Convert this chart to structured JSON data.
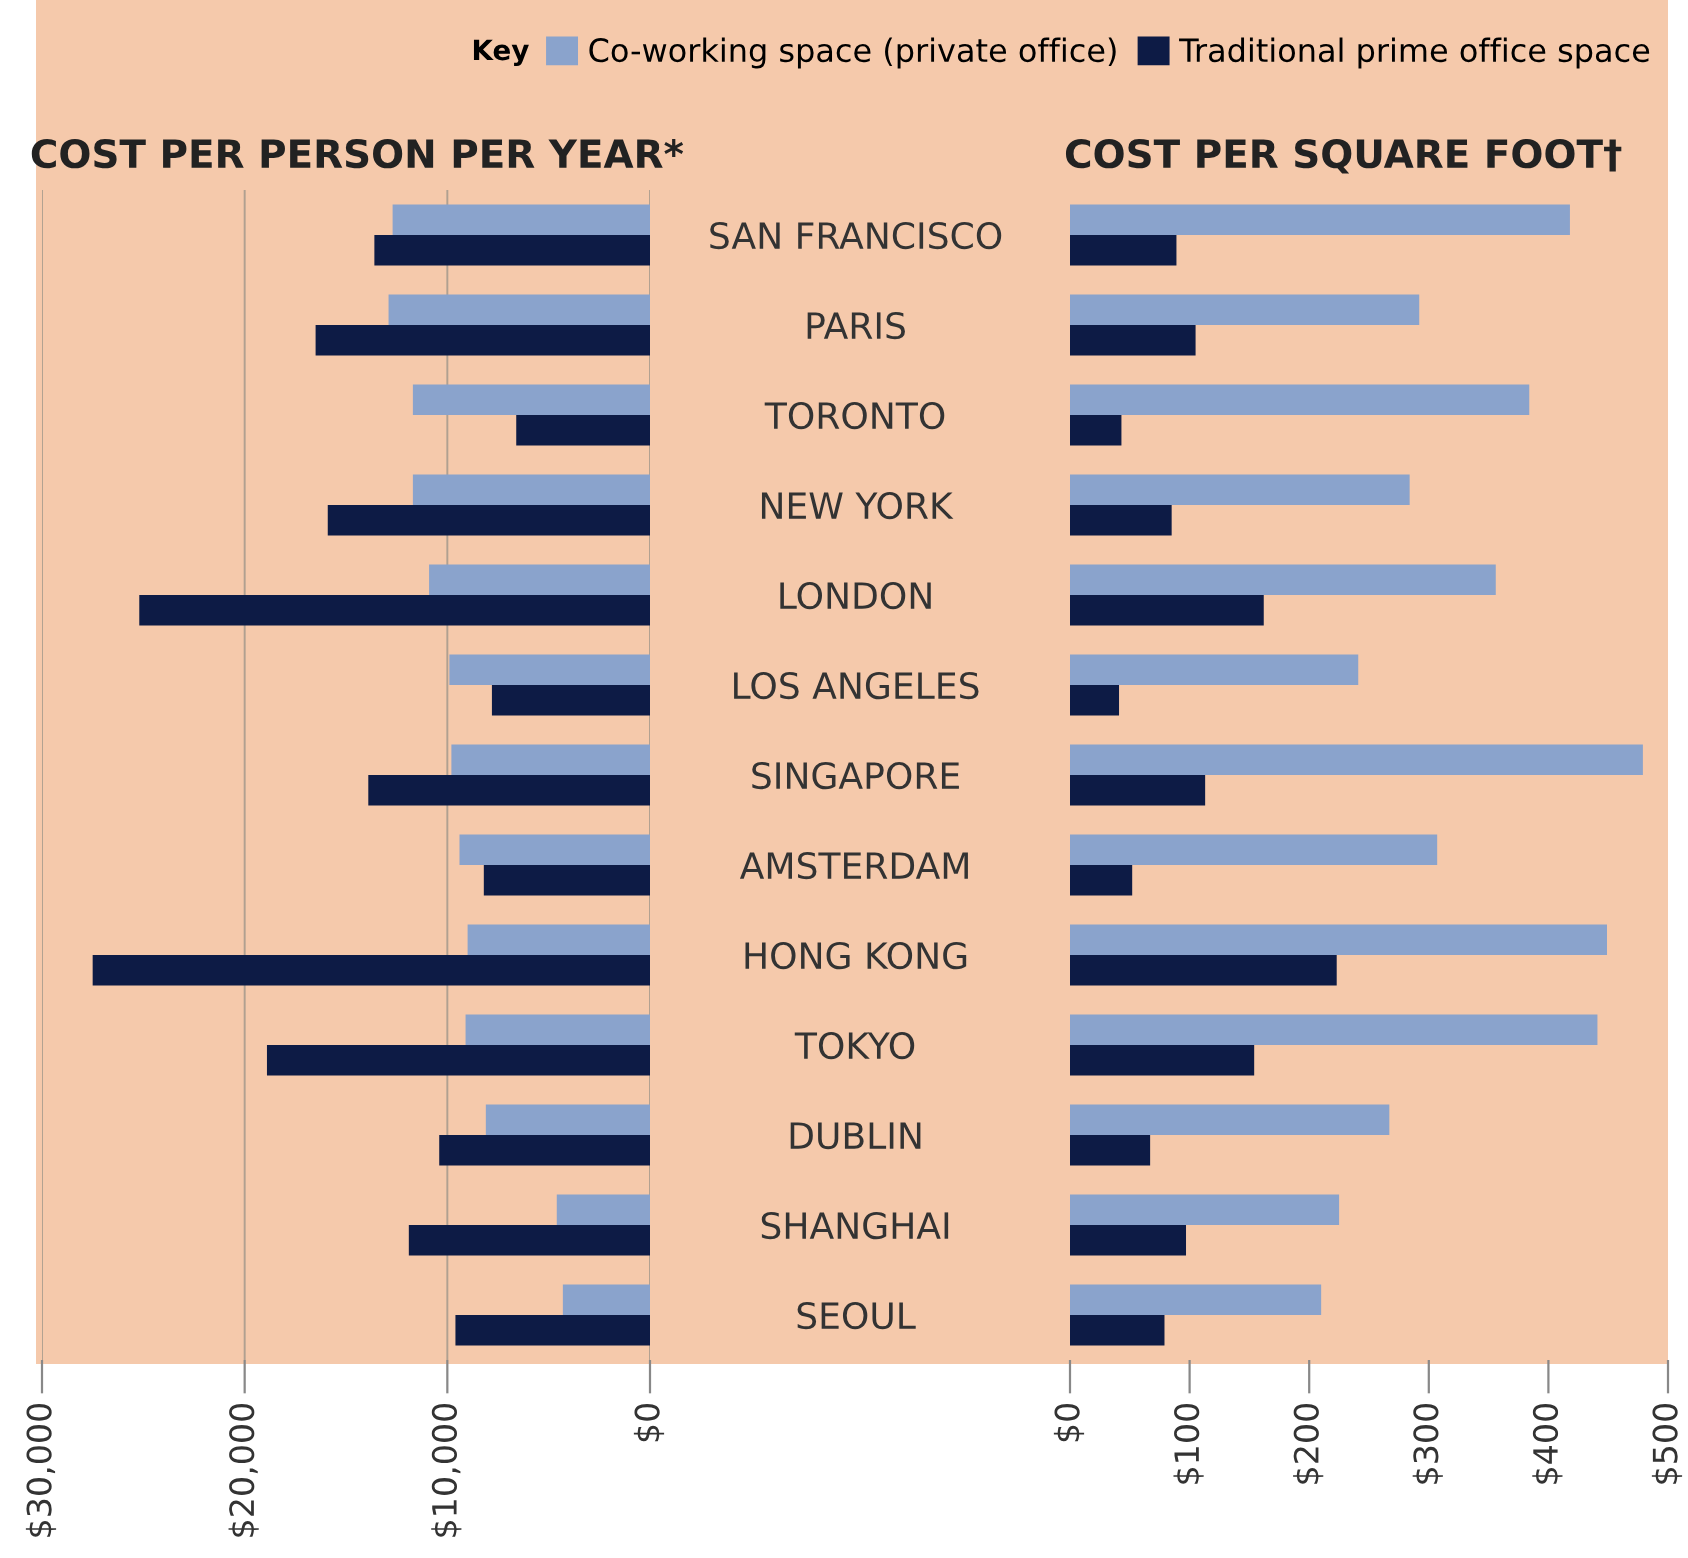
{
  "chart_data": [
    {
      "type": "bar",
      "orientation": "horizontal",
      "title": "COST PER PERSON PER YEAR*",
      "categories": [
        "SAN FRANCISCO",
        "PARIS",
        "TORONTO",
        "NEW YORK",
        "LONDON",
        "LOS ANGELES",
        "SINGAPORE",
        "AMSTERDAM",
        "HONG KONG",
        "TOKYO",
        "DUBLIN",
        "SHANGHAI",
        "SEOUL"
      ],
      "series": [
        {
          "name": "Co-working space (private office)",
          "color": "#8aa3cc",
          "values": [
            12700,
            12900,
            11700,
            11700,
            10900,
            9900,
            9800,
            9400,
            9000,
            9100,
            8100,
            4600,
            4300
          ]
        },
        {
          "name": "Traditional prime office space",
          "color": "#0d1b45",
          "values": [
            13600,
            16500,
            6600,
            15900,
            25200,
            7800,
            13900,
            8200,
            27500,
            18900,
            10400,
            11900,
            9600
          ]
        }
      ],
      "xlim": [
        30000,
        0
      ],
      "xticks": [
        {
          "value": 30000,
          "label": "$30,000"
        },
        {
          "value": 20000,
          "label": "$20,000"
        },
        {
          "value": 10000,
          "label": "$10,000"
        },
        {
          "value": 0,
          "label": "$0"
        }
      ],
      "grid": "x",
      "legend": "top right",
      "legend_title": "Key"
    },
    {
      "type": "bar",
      "orientation": "horizontal",
      "title": "COST PER SQUARE FOOT†",
      "series": [
        {
          "color": "#8aa3cc",
          "values": [
            418,
            292,
            384,
            284,
            356,
            241,
            479,
            307,
            449,
            441,
            267,
            225,
            210
          ]
        },
        {
          "color": "#0d1b45",
          "values": [
            89,
            105,
            43,
            85,
            162,
            41,
            113,
            52,
            223,
            154,
            67,
            97,
            79
          ]
        }
      ],
      "xlim": [
        0,
        500
      ],
      "xticks": [
        {
          "value": 0,
          "label": "$0"
        },
        {
          "value": 100,
          "label": "$100"
        },
        {
          "value": 200,
          "label": "$200"
        },
        {
          "value": 300,
          "label": "$300"
        },
        {
          "value": 400,
          "label": "$400"
        },
        {
          "value": 500,
          "label": "$500"
        }
      ],
      "tick_labels": "x",
      "grid": false
    }
  ]
}
